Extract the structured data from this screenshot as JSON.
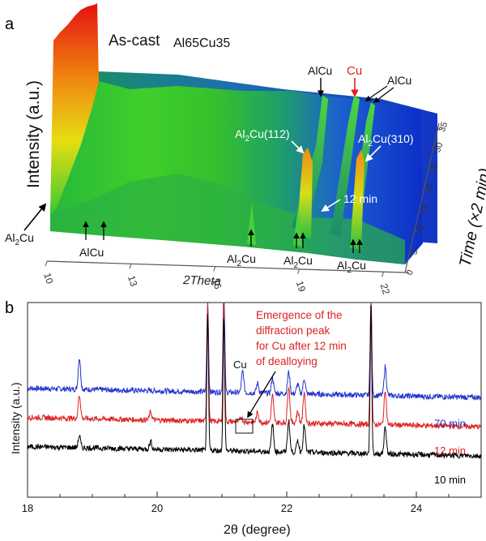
{
  "chart_data": [
    {
      "type": "line",
      "panel_label": "a",
      "title": "As-cast",
      "title_sub": "Al65Cu35",
      "style": "3d-waterfall-surface",
      "xlabel": "2Theta",
      "ylabel": "Intensity (a.u.)",
      "zlabel": "Time (×2 min)",
      "x_ticks": [
        "10",
        "13",
        "16",
        "19",
        "22"
      ],
      "z_ticks": [
        "0",
        "5",
        "10",
        "15",
        "20",
        "25",
        "30",
        "35"
      ],
      "annotations": [
        {
          "text": "Al2Cu",
          "base": "Al",
          "sub": "2",
          "rest": "Cu",
          "theta": 10.0,
          "note": "first frame peak"
        },
        {
          "text": "AlCu",
          "theta": 12.2
        },
        {
          "text": "AlCu",
          "theta": 12.6
        },
        {
          "text": "Al2Cu",
          "base": "Al",
          "sub": "2",
          "rest": "Cu",
          "theta": 18.8
        },
        {
          "text": "Al2Cu",
          "base": "Al",
          "sub": "2",
          "rest": "Cu",
          "theta": 21.0
        },
        {
          "text": "Al2Cu",
          "base": "Al",
          "sub": "2",
          "rest": "Cu",
          "theta": 23.4
        },
        {
          "text": "Al2Cu(112)",
          "base": "Al",
          "sub": "2",
          "rest": "Cu(112)",
          "theta": 21.0
        },
        {
          "text": "Al2Cu(310)",
          "base": "Al",
          "sub": "2",
          "rest": "Cu(310)",
          "theta": 23.4
        },
        {
          "text": "12 min",
          "theta": 21.6
        },
        {
          "text": "AlCu",
          "theta": 22.1
        },
        {
          "text": "Cu",
          "theta": 21.3,
          "color": "#dd2222"
        },
        {
          "text": "AlCu",
          "theta": 22.3
        }
      ],
      "colorscale": [
        "#0a20c8",
        "#1f7ad8",
        "#19c8a0",
        "#39d22c",
        "#e7e20a",
        "#f08a10",
        "#e01010"
      ]
    },
    {
      "type": "line",
      "panel_label": "b",
      "xlabel": "2θ (degree)",
      "ylabel": "Intensity (a.u.)",
      "xlim": [
        18,
        25
      ],
      "ylim": [
        0,
        10
      ],
      "x_ticks": [
        18,
        20,
        22,
        24
      ],
      "series": [
        {
          "name": "70 min",
          "color": "#2233cc",
          "baseline": 5.6,
          "peaks": [
            [
              18.8,
              1.6
            ],
            [
              20.78,
              4.6
            ],
            [
              21.03,
              5.5
            ],
            [
              21.32,
              1.1
            ],
            [
              21.55,
              0.5
            ],
            [
              21.78,
              0.8
            ],
            [
              22.03,
              1.1
            ],
            [
              22.17,
              0.5
            ],
            [
              22.27,
              0.8
            ],
            [
              23.3,
              5.0
            ],
            [
              23.52,
              1.5
            ]
          ]
        },
        {
          "name": "12 min",
          "color": "#dd2222",
          "baseline": 4.1,
          "peaks": [
            [
              18.8,
              1.2
            ],
            [
              19.9,
              0.4
            ],
            [
              20.78,
              6.1
            ],
            [
              21.03,
              6.0
            ],
            [
              21.3,
              0.25
            ],
            [
              21.55,
              0.5
            ],
            [
              21.78,
              1.4
            ],
            [
              22.03,
              1.9
            ],
            [
              22.17,
              0.6
            ],
            [
              22.27,
              1.6
            ],
            [
              23.3,
              6.5
            ],
            [
              23.52,
              1.8
            ]
          ]
        },
        {
          "name": "10 min",
          "color": "#000000",
          "baseline": 2.6,
          "peaks": [
            [
              18.8,
              0.6
            ],
            [
              19.9,
              0.4
            ],
            [
              20.78,
              6.9
            ],
            [
              21.03,
              6.8
            ],
            [
              21.78,
              1.4
            ],
            [
              22.03,
              1.6
            ],
            [
              22.17,
              0.6
            ],
            [
              22.27,
              1.4
            ],
            [
              23.3,
              7.5
            ],
            [
              23.52,
              1.4
            ]
          ]
        }
      ],
      "annotations": [
        {
          "text": "Cu",
          "x": 21.3
        },
        {
          "text": "Emergence of the diffraction peak for Cu after 12 min of dealloying",
          "lines": [
            "Emergence of the",
            "diffraction peak",
            "for Cu after 12 min",
            "of dealloying"
          ],
          "color": "#dd2222"
        }
      ]
    }
  ]
}
